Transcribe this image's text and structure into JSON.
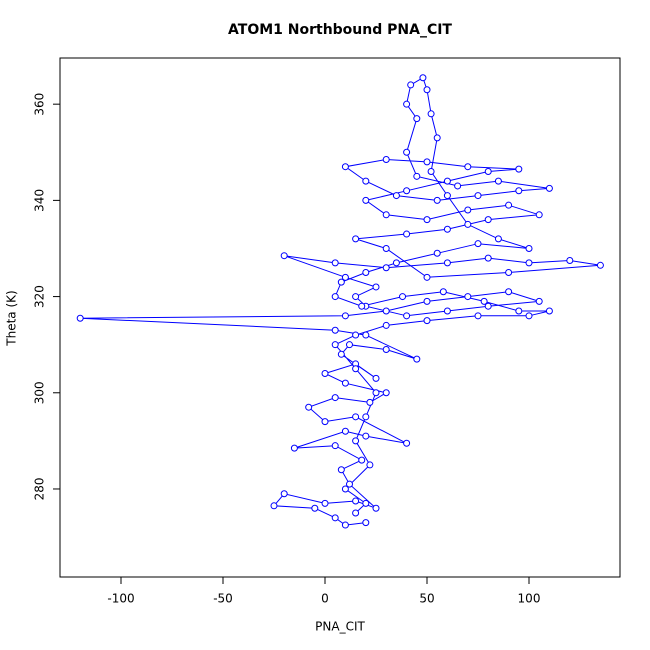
{
  "chart_data": {
    "type": "line",
    "markers": true,
    "title": "ATOM1 Northbound PNA_CIT",
    "x_label": "PNA_CIT",
    "y_label": "Theta (K)",
    "color": "#0000ff",
    "x": [
      20,
      10,
      5,
      -5,
      -25,
      -20,
      0,
      15,
      25,
      12,
      8,
      18,
      5,
      -15,
      10,
      20,
      40,
      15,
      0,
      -8,
      5,
      22,
      30,
      10,
      0,
      15,
      25,
      8,
      12,
      30,
      45,
      20,
      5,
      -120,
      10,
      30,
      50,
      70,
      90,
      105,
      80,
      60,
      40,
      20,
      15,
      25,
      10,
      -20,
      5,
      30,
      60,
      80,
      100,
      120,
      135,
      90,
      50,
      30,
      15,
      40,
      60,
      80,
      105,
      90,
      70,
      50,
      30,
      20,
      40,
      60,
      80,
      95,
      70,
      50,
      30,
      10,
      20,
      35,
      55,
      75,
      95,
      110,
      85,
      65,
      45,
      40,
      45,
      40,
      42,
      48,
      50,
      52,
      55,
      52,
      60,
      70,
      85,
      100,
      75,
      55,
      35,
      20,
      8,
      5,
      18,
      38,
      58,
      78,
      95,
      110,
      100,
      75,
      50,
      30,
      15,
      5,
      15,
      25,
      20,
      15,
      22,
      10,
      20,
      15
    ],
    "values": [
      273,
      272.5,
      274,
      276,
      276.5,
      279,
      277,
      277.5,
      276,
      281,
      284,
      286,
      289,
      288.5,
      292,
      291,
      289.5,
      295,
      294,
      297,
      299,
      298,
      300,
      302,
      304,
      306,
      303,
      308,
      310,
      309,
      307,
      312,
      313,
      315.5,
      316,
      317,
      319,
      320,
      321,
      319,
      318,
      317,
      316,
      318,
      320,
      322,
      324,
      328.5,
      327,
      326,
      327,
      328,
      327,
      327.5,
      326.5,
      325,
      324,
      330,
      332,
      333,
      334,
      336,
      337,
      339,
      338,
      336,
      337,
      340,
      342,
      344,
      346,
      346.5,
      347,
      348,
      348.5,
      347,
      344,
      341,
      340,
      341,
      342,
      342.5,
      344,
      343,
      345,
      350,
      357,
      360,
      364,
      365.5,
      363,
      358,
      353,
      346,
      341,
      335,
      332,
      330,
      331,
      329,
      327,
      325,
      323,
      320,
      318,
      320,
      321,
      319,
      317,
      317,
      316,
      316,
      315,
      314,
      312,
      310,
      305,
      300,
      295,
      290,
      285,
      280,
      277,
      275
    ],
    "xlim": [
      -129.9,
      144.6
    ],
    "ylim": [
      261.7,
      369.6
    ],
    "xticks": [
      -100,
      -50,
      0,
      50,
      100
    ],
    "yticks": [
      280,
      300,
      320,
      340,
      360
    ]
  }
}
